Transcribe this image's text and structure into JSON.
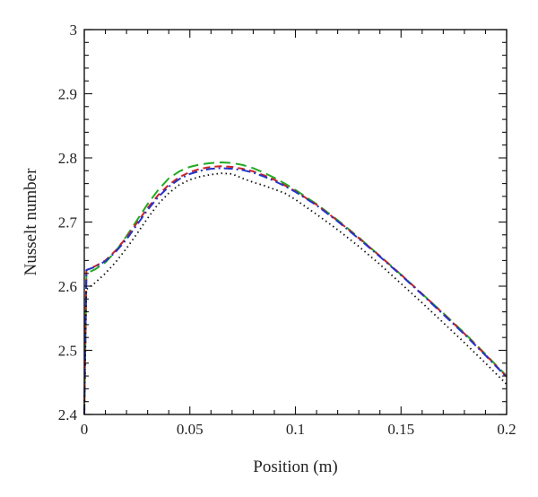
{
  "chart_data": {
    "type": "line",
    "title": "",
    "xlabel": "Position (m)",
    "ylabel": "Nusselt number",
    "xlim": [
      0,
      0.2
    ],
    "ylim": [
      2.4,
      3.0
    ],
    "x_ticks": [
      0,
      0.05,
      0.1,
      0.15,
      0.2
    ],
    "x_tick_labels": [
      "0",
      "0.05",
      "0.1",
      "0.15",
      "0.2"
    ],
    "y_ticks": [
      2.4,
      2.5,
      2.6,
      2.7,
      2.8,
      2.9,
      3.0
    ],
    "y_tick_labels": [
      "2.4",
      "2.5",
      "2.6",
      "2.7",
      "2.8",
      "2.9",
      "3"
    ],
    "grid": false,
    "legend": "none",
    "series": [
      {
        "color": "#22aa22",
        "dash": "long-dash",
        "x": [
          0,
          0.001,
          0.005,
          0.01,
          0.015,
          0.02,
          0.025,
          0.03,
          0.035,
          0.04,
          0.045,
          0.05,
          0.055,
          0.06,
          0.065,
          0.07,
          0.075,
          0.08,
          0.085,
          0.09,
          0.095,
          0.1,
          0.11,
          0.12,
          0.13,
          0.14,
          0.15,
          0.16,
          0.17,
          0.18,
          0.19,
          0.2
        ],
        "y": [
          2.4,
          2.62,
          2.626,
          2.637,
          2.655,
          2.678,
          2.703,
          2.728,
          2.75,
          2.768,
          2.779,
          2.786,
          2.79,
          2.792,
          2.793,
          2.792,
          2.789,
          2.784,
          2.777,
          2.769,
          2.76,
          2.75,
          2.728,
          2.703,
          2.676,
          2.647,
          2.618,
          2.588,
          2.558,
          2.527,
          2.494,
          2.46
        ]
      },
      {
        "color": "#cc2222",
        "dash": "dash",
        "x": [
          0,
          0.001,
          0.005,
          0.01,
          0.015,
          0.02,
          0.025,
          0.03,
          0.035,
          0.04,
          0.045,
          0.05,
          0.055,
          0.06,
          0.065,
          0.07,
          0.075,
          0.08,
          0.085,
          0.09,
          0.095,
          0.1,
          0.11,
          0.12,
          0.13,
          0.14,
          0.15,
          0.16,
          0.17,
          0.18,
          0.19,
          0.2
        ],
        "y": [
          2.4,
          2.625,
          2.631,
          2.64,
          2.656,
          2.676,
          2.699,
          2.722,
          2.742,
          2.758,
          2.77,
          2.778,
          2.783,
          2.786,
          2.787,
          2.786,
          2.783,
          2.779,
          2.773,
          2.766,
          2.757,
          2.748,
          2.727,
          2.702,
          2.675,
          2.647,
          2.618,
          2.588,
          2.557,
          2.526,
          2.493,
          2.459
        ]
      },
      {
        "color": "#2233cc",
        "dash": "dash-dot",
        "x": [
          0,
          0.001,
          0.005,
          0.01,
          0.015,
          0.02,
          0.025,
          0.03,
          0.035,
          0.04,
          0.045,
          0.05,
          0.055,
          0.06,
          0.065,
          0.07,
          0.075,
          0.08,
          0.085,
          0.09,
          0.095,
          0.1,
          0.11,
          0.12,
          0.13,
          0.14,
          0.15,
          0.16,
          0.17,
          0.18,
          0.19,
          0.2
        ],
        "y": [
          2.4,
          2.625,
          2.63,
          2.639,
          2.654,
          2.673,
          2.696,
          2.719,
          2.739,
          2.755,
          2.767,
          2.775,
          2.78,
          2.783,
          2.784,
          2.783,
          2.781,
          2.777,
          2.771,
          2.764,
          2.756,
          2.747,
          2.726,
          2.701,
          2.674,
          2.646,
          2.617,
          2.587,
          2.556,
          2.525,
          2.492,
          2.458
        ]
      },
      {
        "color": "#111111",
        "dash": "dot",
        "x": [
          0,
          0.001,
          0.005,
          0.01,
          0.015,
          0.02,
          0.025,
          0.03,
          0.035,
          0.04,
          0.045,
          0.05,
          0.055,
          0.06,
          0.065,
          0.07,
          0.075,
          0.08,
          0.085,
          0.09,
          0.095,
          0.1,
          0.11,
          0.12,
          0.13,
          0.14,
          0.15,
          0.16,
          0.17,
          0.18,
          0.19,
          0.2
        ],
        "y": [
          2.4,
          2.595,
          2.605,
          2.62,
          2.638,
          2.659,
          2.682,
          2.706,
          2.728,
          2.745,
          2.758,
          2.766,
          2.771,
          2.774,
          2.776,
          2.775,
          2.768,
          2.762,
          2.757,
          2.751,
          2.745,
          2.735,
          2.712,
          2.688,
          2.662,
          2.634,
          2.604,
          2.574,
          2.543,
          2.512,
          2.48,
          2.447
        ]
      }
    ]
  }
}
